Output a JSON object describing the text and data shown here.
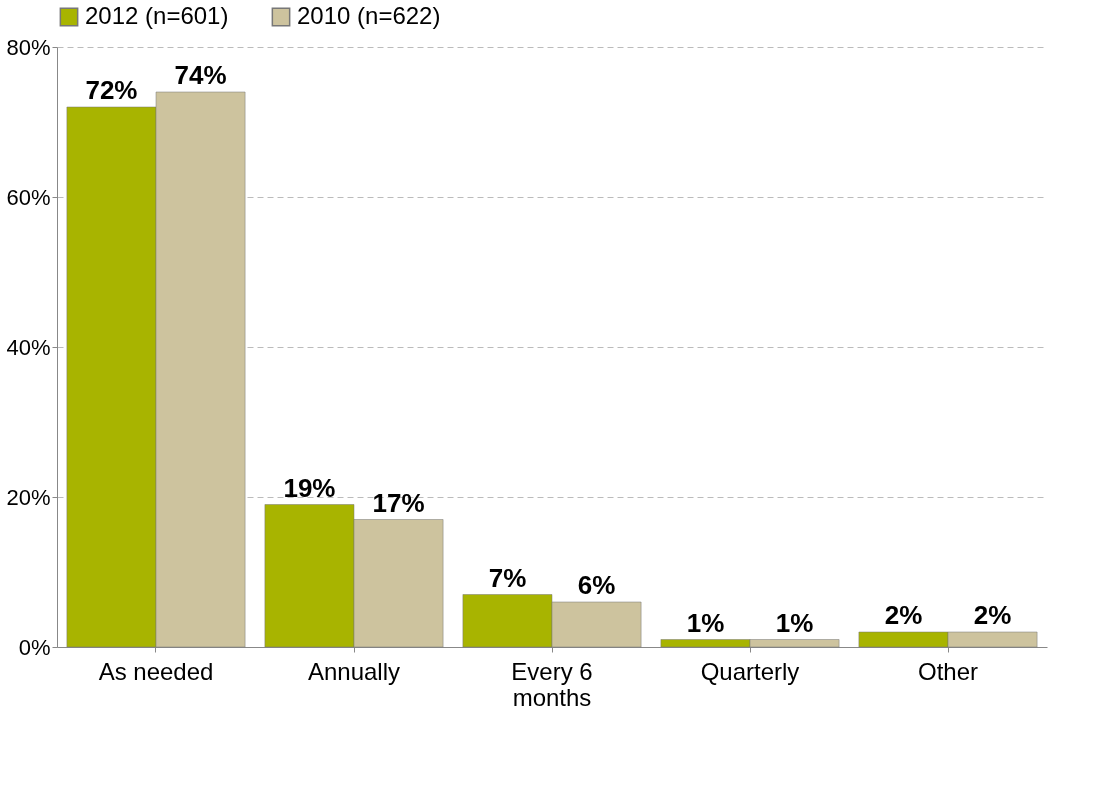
{
  "chart_data": {
    "type": "bar",
    "categories": [
      "As needed",
      "Annually",
      "Every 6 months",
      "Quarterly",
      "Other"
    ],
    "series": [
      {
        "name": "2012 (n=601)",
        "color": "#a8b400",
        "values": [
          72,
          19,
          7,
          1,
          2
        ],
        "value_labels": [
          "72%",
          "19%",
          "7%",
          "1%",
          "2%"
        ]
      },
      {
        "name": "2010 (n=622)",
        "color": "#cdc39e",
        "values": [
          74,
          17,
          6,
          1,
          2
        ],
        "value_labels": [
          "74%",
          "17%",
          "6%",
          "1%",
          "2%"
        ]
      }
    ],
    "ylim": [
      0,
      80
    ],
    "yticks": [
      {
        "value": 0,
        "label": "0%"
      },
      {
        "value": 20,
        "label": "20%"
      },
      {
        "value": 40,
        "label": "40%"
      },
      {
        "value": 60,
        "label": "60%"
      },
      {
        "value": 80,
        "label": "80%"
      }
    ],
    "grid": "y",
    "legend": "top"
  }
}
